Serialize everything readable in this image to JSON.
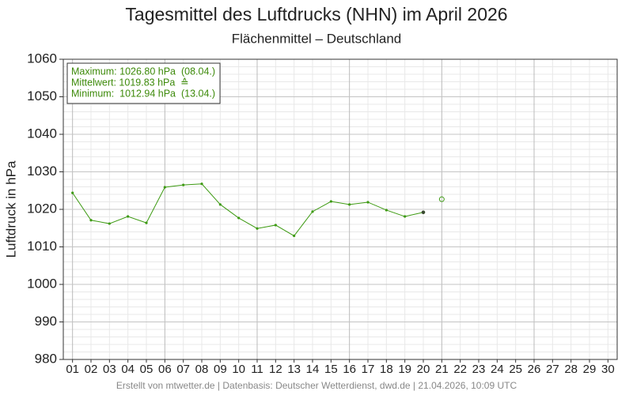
{
  "chart_data": {
    "type": "line",
    "title": "Tagesmittel des Luftdrucks (NHN) im April 2026",
    "subtitle": "Flächenmittel – Deutschland",
    "ylabel": "Luftdruck in hPa",
    "categories": [
      "01",
      "02",
      "03",
      "04",
      "05",
      "06",
      "07",
      "08",
      "09",
      "10",
      "11",
      "12",
      "13",
      "14",
      "15",
      "16",
      "17",
      "18",
      "19",
      "20",
      "21",
      "22",
      "23",
      "24",
      "25",
      "26",
      "27",
      "28",
      "29",
      "30"
    ],
    "series": [
      {
        "color": "#3d9a12",
        "last_point_color": "#3a4a30",
        "marker": "dot",
        "values": [
          1024.4,
          1017.1,
          1016.2,
          1018.1,
          1016.4,
          1025.9,
          1026.5,
          1026.8,
          1021.3,
          1017.7,
          1014.9,
          1015.8,
          1012.94,
          1019.4,
          1022.1,
          1021.3,
          1021.9,
          1019.8,
          1018.1,
          1019.2,
          null,
          null,
          null,
          null,
          null,
          null,
          null,
          null,
          null,
          null
        ]
      },
      {
        "color": "#3d9a12",
        "marker": "open-circle",
        "values": [
          null,
          null,
          null,
          null,
          null,
          null,
          null,
          null,
          null,
          null,
          null,
          null,
          null,
          null,
          null,
          null,
          null,
          null,
          null,
          null,
          1022.7,
          null,
          null,
          null,
          null,
          null,
          null,
          null,
          null,
          null
        ]
      }
    ],
    "ylim": [
      980,
      1060
    ],
    "yticks": [
      980,
      990,
      1000,
      1010,
      1020,
      1030,
      1040,
      1050,
      1060
    ],
    "yminor_step": 2,
    "x_major_every": 5,
    "grid": true,
    "info_box": [
      "Maximum: 1026.80 hPa  (08.04.)",
      "Mittelwert: 1019.83 hPa  ≙",
      "Minimum:  1012.94 hPa  (13.04.)"
    ],
    "info_color": "#3d8a0a",
    "footer": "Erstellt von mtwetter.de | Datenbasis: Deutscher Wetterdienst, dwd.de | 21.04.2026, 10:09 UTC"
  }
}
